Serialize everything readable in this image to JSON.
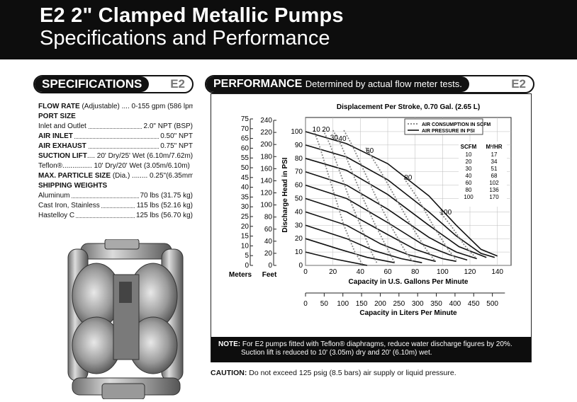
{
  "header": {
    "title_bold": "E2",
    "title_rest": " 2\" Clamped Metallic Pumps",
    "subtitle": "Specifications and Performance"
  },
  "specifications": {
    "heading": "SPECIFICATIONS",
    "tag": "E2",
    "rows": [
      {
        "label_bold": "FLOW RATE",
        "label_rest": " (Adjustable) .... 0-155 gpm (586 lpm)",
        "value": ""
      },
      {
        "label_bold": "PORT SIZE",
        "label_rest": "",
        "value": ""
      },
      {
        "label_bold": "",
        "label_rest": "Inlet and Outlet",
        "value": "2.0\" NPT (BSP)"
      },
      {
        "label_bold": "AIR INLET",
        "label_rest": "",
        "value": "0.50\" NPT"
      },
      {
        "label_bold": "AIR EXHAUST",
        "label_rest": "",
        "value": "0.75\" NPT"
      },
      {
        "label_bold": "SUCTION LIFT",
        "label_rest": ".... 20' Dry/25' Wet (6.10m/7.62m)",
        "value": ""
      },
      {
        "label_bold": "",
        "label_rest": "Teflon®............... 10' Dry/20' Wet (3.05m/6.10m)",
        "value": ""
      },
      {
        "label_bold": "MAX. PARTICLE SIZE",
        "label_rest": " (Dia.) ........ 0.25\"(6.35mm)",
        "value": ""
      },
      {
        "label_bold": "SHIPPING WEIGHTS",
        "label_rest": "",
        "value": ""
      },
      {
        "label_bold": "",
        "label_rest": "Aluminum",
        "value": "70 lbs (31.75 kg)"
      },
      {
        "label_bold": "",
        "label_rest": "Cast Iron, Stainless",
        "value": "115 lbs (52.16 kg)"
      },
      {
        "label_bold": "",
        "label_rest": "Hastelloy C",
        "value": "125 lbs (56.70 kg)"
      }
    ]
  },
  "performance": {
    "heading": "PERFORMANCE",
    "subheading": "Determined by actual flow meter tests.",
    "tag": "E2",
    "chart_title": "Displacement Per Stroke, 0.70 Gal. (2.65 L)",
    "legend_dashed": "AIR CONSUMPTION IN SCFM",
    "legend_solid": "AIR PRESSURE IN PSI",
    "table_headers": [
      "SCFM",
      "M³/HR"
    ],
    "table_rows": [
      [
        "10",
        "17"
      ],
      [
        "20",
        "34"
      ],
      [
        "30",
        "51"
      ],
      [
        "40",
        "68"
      ],
      [
        "60",
        "102"
      ],
      [
        "80",
        "136"
      ],
      [
        "100",
        "170"
      ]
    ],
    "ylabel_psi": "Discharge Head in PSI",
    "meters_label": "Meters",
    "feet_label": "Feet",
    "meters_ticks": [
      "75",
      "70",
      "65",
      "60",
      "55",
      "50",
      "45",
      "40",
      "35",
      "30",
      "25",
      "20",
      "15",
      "10",
      "5",
      "0"
    ],
    "feet_ticks": [
      "240",
      "220",
      "200",
      "180",
      "160",
      "140",
      "120",
      "100",
      "80",
      "60",
      "40",
      "20",
      "0"
    ],
    "xlabel_gpm": "Capacity in U.S. Gallons Per Minute",
    "xlabel_lpm": "Capacity in Liters Per Minute",
    "lpm_ticks": [
      "0",
      "50",
      "100",
      "150",
      "200",
      "250",
      "300",
      "350",
      "400",
      "450",
      "500"
    ],
    "scfm_labels": [
      "10",
      "20",
      "30",
      "40",
      "60",
      "80",
      "100"
    ],
    "note_bold": "NOTE:",
    "note_line1": " For E2 pumps fitted with Teflon® diaphragms, reduce water discharge figures by 20%.",
    "note_line2": "Suction lift is reduced to 10' (3.05m) dry and 20' (6.10m) wet.",
    "caution_bold": "CAUTION:",
    "caution_rest": " Do not exceed 125 psig (8.5 bars) air supply or liquid pressure."
  },
  "chart_data": {
    "type": "line",
    "title": "Displacement Per Stroke, 0.70 Gal. (2.65 L)",
    "xlabel": "Capacity in U.S. Gallons Per Minute",
    "ylabel": "Discharge Head in PSI",
    "xlim": [
      0,
      150
    ],
    "ylim": [
      0,
      100
    ],
    "x_ticks": [
      0,
      20,
      40,
      60,
      80,
      100,
      120,
      140
    ],
    "y_ticks": [
      0,
      10,
      20,
      30,
      40,
      50,
      60,
      70,
      80,
      90,
      100
    ],
    "series": [
      {
        "name": "100",
        "style": "solid",
        "points": [
          [
            0,
            100
          ],
          [
            30,
            91
          ],
          [
            60,
            76
          ],
          [
            90,
            52
          ],
          [
            110,
            30
          ],
          [
            128,
            12
          ],
          [
            140,
            7
          ]
        ]
      },
      {
        "name": "90",
        "style": "solid",
        "points": [
          [
            0,
            90
          ],
          [
            30,
            81
          ],
          [
            60,
            64
          ],
          [
            90,
            40
          ],
          [
            110,
            22
          ],
          [
            128,
            9
          ],
          [
            138,
            6
          ]
        ]
      },
      {
        "name": "80",
        "style": "solid",
        "points": [
          [
            0,
            80
          ],
          [
            30,
            71
          ],
          [
            60,
            53
          ],
          [
            90,
            30
          ],
          [
            112,
            14
          ],
          [
            132,
            6
          ]
        ]
      },
      {
        "name": "70",
        "style": "solid",
        "points": [
          [
            0,
            70
          ],
          [
            30,
            60
          ],
          [
            60,
            42
          ],
          [
            90,
            21
          ],
          [
            110,
            10
          ],
          [
            125,
            5
          ]
        ]
      },
      {
        "name": "60",
        "style": "solid",
        "points": [
          [
            0,
            60
          ],
          [
            30,
            50
          ],
          [
            60,
            32
          ],
          [
            85,
            16
          ],
          [
            105,
            8
          ],
          [
            118,
            4
          ]
        ]
      },
      {
        "name": "50",
        "style": "solid",
        "points": [
          [
            0,
            50
          ],
          [
            30,
            40
          ],
          [
            60,
            23
          ],
          [
            80,
            12
          ],
          [
            100,
            5
          ],
          [
            110,
            3
          ]
        ]
      },
      {
        "name": "40",
        "style": "solid",
        "points": [
          [
            0,
            40
          ],
          [
            30,
            30
          ],
          [
            55,
            16
          ],
          [
            75,
            8
          ],
          [
            95,
            3
          ]
        ]
      },
      {
        "name": "30",
        "style": "solid",
        "points": [
          [
            0,
            30
          ],
          [
            30,
            20
          ],
          [
            50,
            11
          ],
          [
            70,
            5
          ],
          [
            85,
            2
          ]
        ]
      },
      {
        "name": "20",
        "style": "solid",
        "points": [
          [
            0,
            20
          ],
          [
            25,
            12
          ],
          [
            45,
            6
          ],
          [
            65,
            2
          ]
        ]
      },
      {
        "name": "10",
        "style": "solid",
        "points": [
          [
            0,
            10
          ],
          [
            20,
            5
          ],
          [
            35,
            2
          ],
          [
            45,
            0
          ]
        ]
      },
      {
        "name": "10 SCFM",
        "style": "dashed",
        "points": [
          [
            6,
            101
          ],
          [
            10,
            90
          ],
          [
            16,
            70
          ],
          [
            22,
            50
          ],
          [
            28,
            30
          ],
          [
            36,
            10
          ],
          [
            42,
            0
          ]
        ]
      },
      {
        "name": "20 SCFM",
        "style": "dashed",
        "points": [
          [
            13,
            101
          ],
          [
            18,
            90
          ],
          [
            25,
            70
          ],
          [
            32,
            50
          ],
          [
            40,
            30
          ],
          [
            48,
            10
          ],
          [
            52,
            2
          ]
        ]
      },
      {
        "name": "30 SCFM",
        "style": "dashed",
        "points": [
          [
            20,
            101
          ],
          [
            26,
            90
          ],
          [
            34,
            70
          ],
          [
            42,
            50
          ],
          [
            51,
            30
          ],
          [
            60,
            12
          ],
          [
            65,
            2
          ]
        ]
      },
      {
        "name": "40 SCFM",
        "style": "dashed",
        "points": [
          [
            28,
            101
          ],
          [
            34,
            90
          ],
          [
            43,
            70
          ],
          [
            52,
            50
          ],
          [
            62,
            30
          ],
          [
            72,
            12
          ],
          [
            78,
            3
          ]
        ]
      },
      {
        "name": "60 SCFM",
        "style": "dashed",
        "points": [
          [
            44,
            88
          ],
          [
            55,
            70
          ],
          [
            66,
            50
          ],
          [
            77,
            30
          ],
          [
            88,
            12
          ],
          [
            94,
            4
          ]
        ]
      },
      {
        "name": "80 SCFM",
        "style": "dashed",
        "points": [
          [
            72,
            65
          ],
          [
            82,
            50
          ],
          [
            93,
            30
          ],
          [
            104,
            12
          ],
          [
            110,
            4
          ]
        ]
      },
      {
        "name": "100 SCFM",
        "style": "dashed",
        "points": [
          [
            98,
            40
          ],
          [
            106,
            30
          ],
          [
            116,
            15
          ],
          [
            124,
            6
          ]
        ]
      }
    ]
  }
}
